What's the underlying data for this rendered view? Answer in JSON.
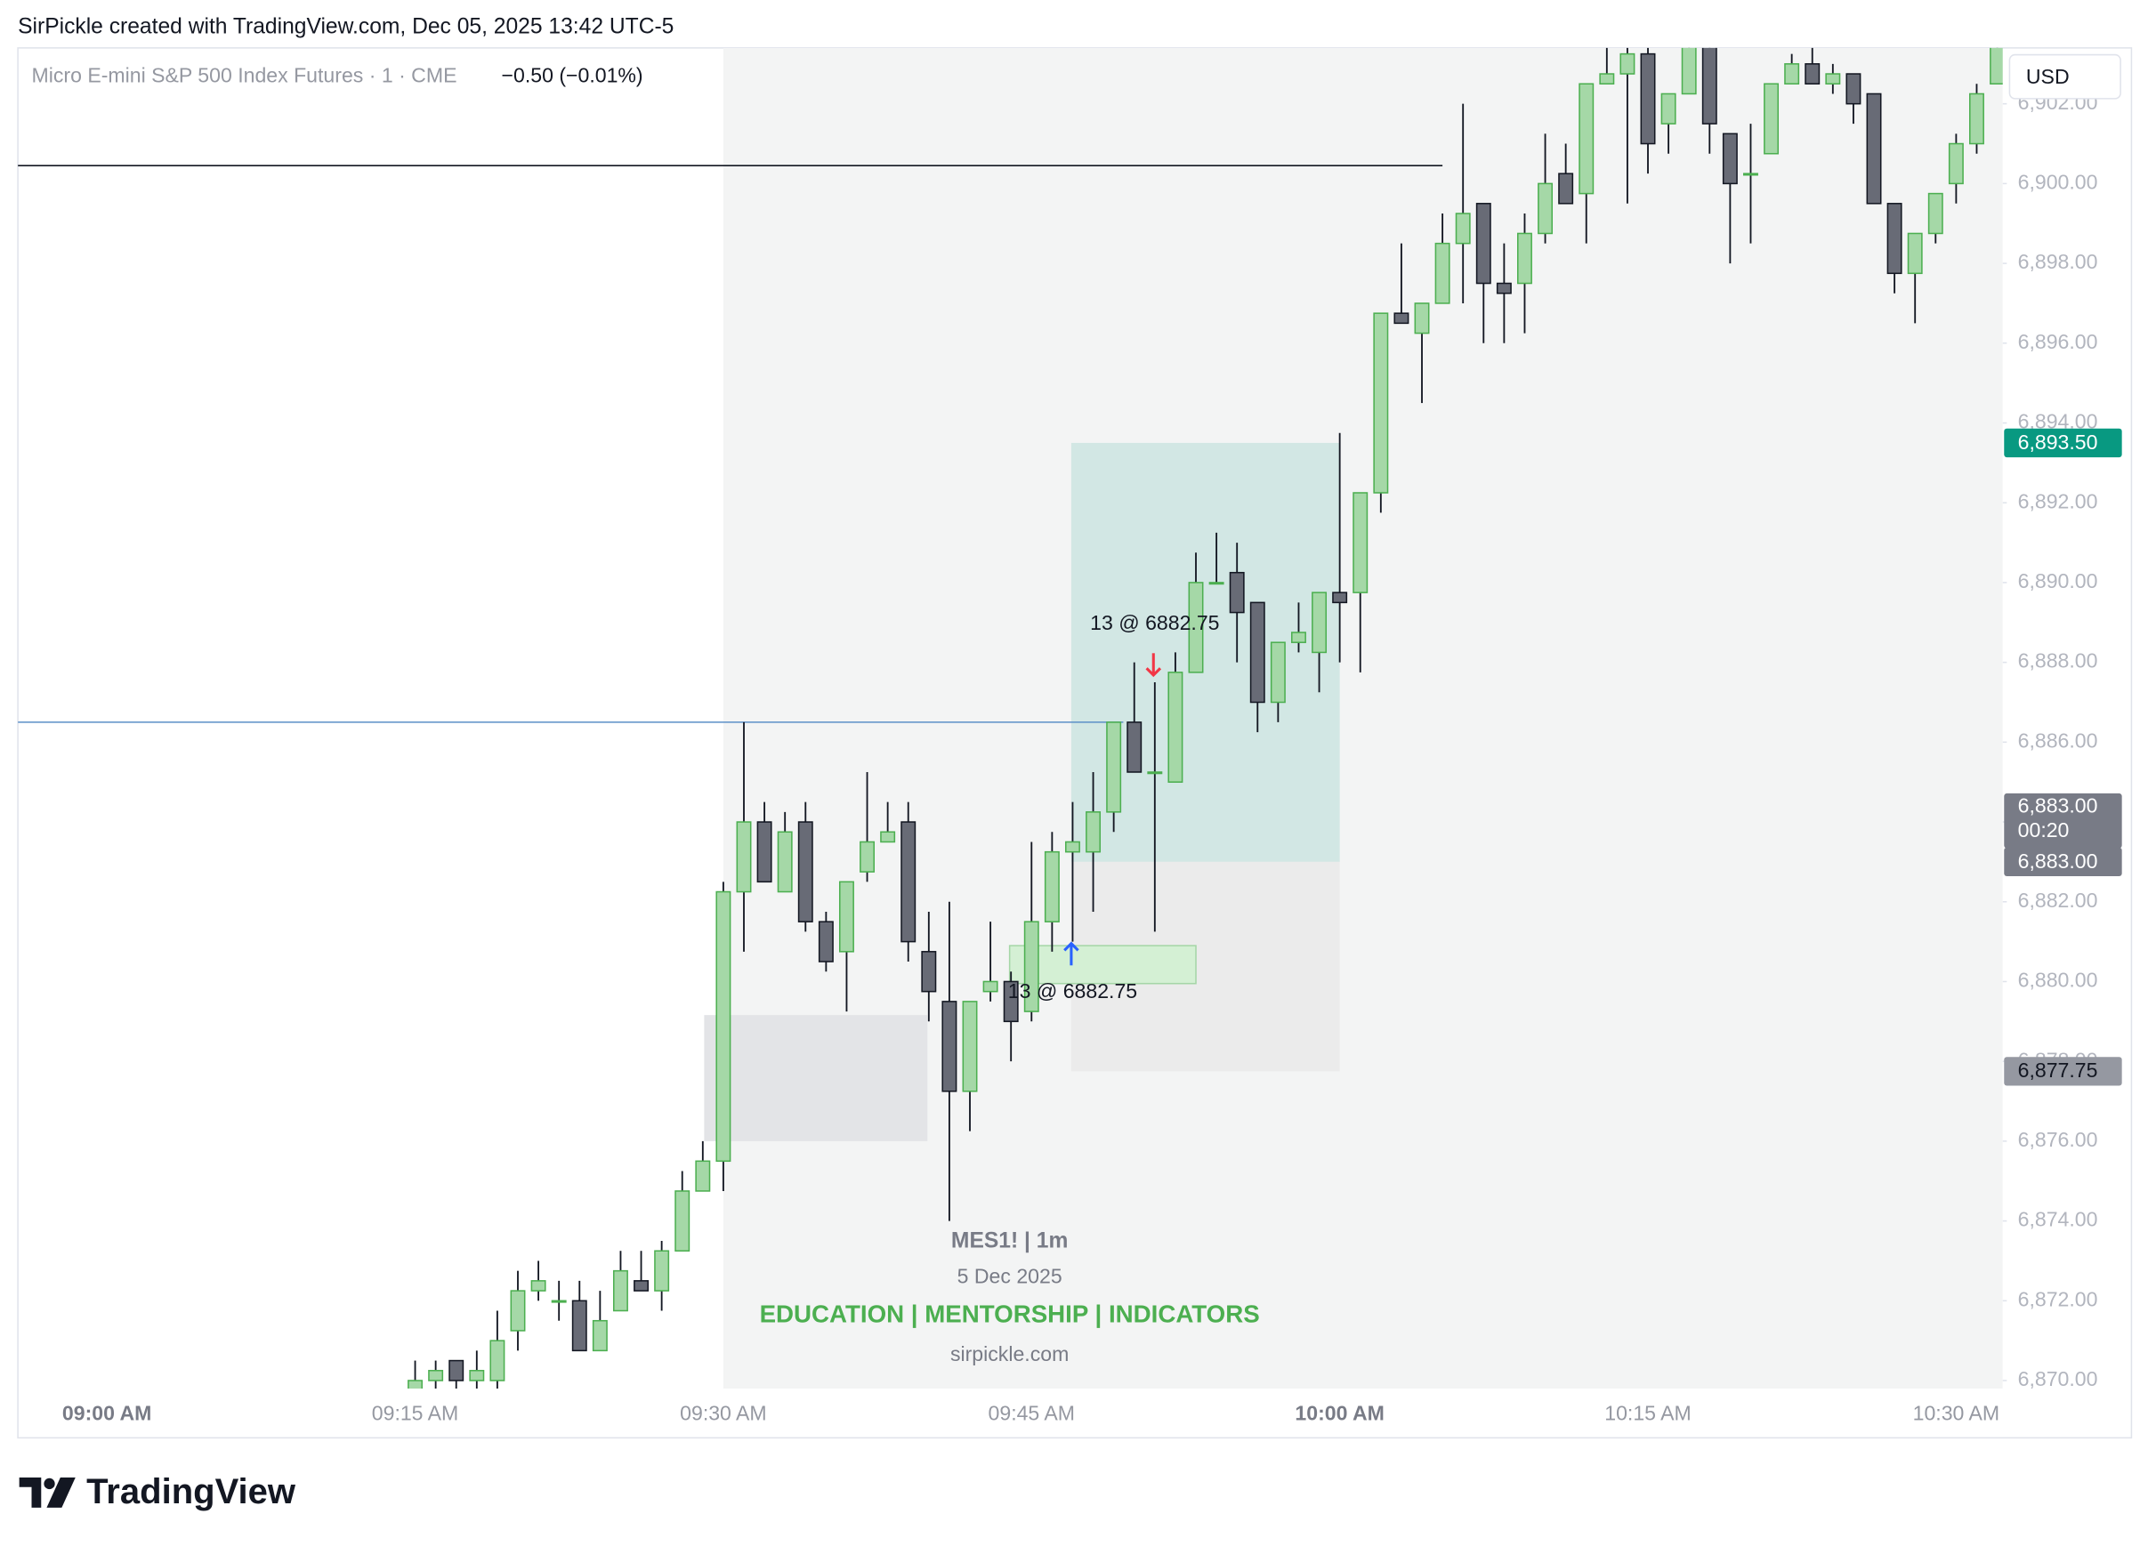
{
  "header": "SirPickle created with TradingView.com, Dec 05, 2025 13:42 UTC-5",
  "chart_data": {
    "type": "candlestick",
    "title": "Micro E-mini S&P 500 Index Futures · 1 · CME",
    "change_label": "−0.50 (−0.01%)",
    "currency": "USD",
    "categories": [
      "09:00 AM",
      null,
      null,
      null,
      null,
      null,
      null,
      null,
      null,
      null,
      null,
      null,
      null,
      null,
      null,
      "09:15 AM",
      null,
      null,
      null,
      null,
      null,
      null,
      null,
      null,
      null,
      null,
      null,
      null,
      null,
      null,
      "09:30 AM",
      null,
      null,
      null,
      null,
      null,
      null,
      null,
      null,
      null,
      null,
      null,
      null,
      null,
      null,
      "09:45 AM",
      null,
      null,
      null,
      null,
      null,
      null,
      null,
      null,
      null,
      null,
      null,
      null,
      null,
      null,
      "10:00 AM",
      null,
      null,
      null,
      null,
      null,
      null,
      null,
      null,
      null,
      null,
      null,
      null,
      null,
      null,
      "10:15 AM",
      null,
      null,
      null,
      null,
      null,
      null,
      null,
      null,
      null,
      null,
      null,
      null,
      null,
      null,
      "10:30 AM",
      null,
      null
    ],
    "open": [
      null,
      null,
      null,
      null,
      null,
      null,
      null,
      null,
      null,
      null,
      null,
      null,
      null,
      null,
      null,
      6869.75,
      6870,
      6870.5,
      6870,
      6870,
      6871.25,
      6872.25,
      6872,
      6872,
      6870.75,
      6871.75,
      6872.5,
      6872.25,
      6873.25,
      6874.75,
      6875.5,
      6882.25,
      6884,
      6882.25,
      6884,
      6881.5,
      6880.75,
      6882.75,
      6883.5,
      6884,
      6880.75,
      6879.5,
      6877.25,
      6879.75,
      6880,
      6879.25,
      6881.5,
      6883.25,
      6883.25,
      6884.25,
      6886.5,
      6885.25,
      6885,
      6887.75,
      6890,
      6890.25,
      6889.5,
      6887,
      6888.5,
      6888.25,
      6889.75,
      6889.75,
      6892.25,
      6896.75,
      6896.25,
      6897,
      6898.5,
      6899.5,
      6897.5,
      6897.5,
      6898.75,
      6900.25,
      6899.75,
      6902.5,
      6902.75,
      6903.25,
      6901.5,
      6902.25,
      6903.5,
      6901.25,
      6900.25,
      6900.75,
      6902.5,
      6903,
      6902.5,
      6902.75,
      6902.25,
      6899.5,
      6897.75,
      6898.75,
      6900,
      6901,
      6902.5
    ],
    "high": [
      null,
      null,
      null,
      null,
      null,
      null,
      null,
      null,
      null,
      null,
      null,
      null,
      null,
      null,
      null,
      6870.5,
      6870.5,
      6870.5,
      6870.75,
      6871.75,
      6872.75,
      6873,
      6872.5,
      6872.5,
      6872.25,
      6873.25,
      6873.25,
      6873.5,
      6875.25,
      6876,
      6882.5,
      6886.5,
      6884.5,
      6884.25,
      6884.5,
      6881.75,
      6882.5,
      6885.25,
      6884.5,
      6884.5,
      6881.75,
      6882,
      6879.5,
      6881.5,
      6880.25,
      6883.5,
      6883.75,
      6884.5,
      6885.25,
      6886.5,
      6888,
      6887.5,
      6888.25,
      6890.75,
      6891.25,
      6891,
      6889.5,
      6888.5,
      6889.5,
      6889.75,
      6893.75,
      6892.25,
      6896.75,
      6898.5,
      6897,
      6899.25,
      6902,
      6899.5,
      6898.5,
      6899.25,
      6901.25,
      6901,
      6902.5,
      6903.5,
      6903.5,
      6903.5,
      6902.25,
      6903.5,
      6903.5,
      6901.25,
      6901.5,
      6902.5,
      6903.25,
      6903.5,
      6903,
      6902.75,
      6902.25,
      6899.5,
      6898.75,
      6899.75,
      6901.25,
      6902.5,
      6903.5
    ],
    "low": [
      null,
      null,
      null,
      null,
      null,
      null,
      null,
      null,
      null,
      null,
      null,
      null,
      null,
      null,
      null,
      6869.5,
      6869.75,
      6869.75,
      6869.75,
      6869.75,
      6870.75,
      6872,
      6871.5,
      6870.75,
      6870.75,
      6871.75,
      6872.25,
      6871.75,
      6873.25,
      6874.75,
      6874.75,
      6880.75,
      6882.5,
      6882.25,
      6881.25,
      6880.25,
      6879.25,
      6882.5,
      6883.5,
      6880.5,
      6879,
      6874,
      6876.25,
      6879.5,
      6878,
      6879,
      6880.75,
      6881,
      6881.75,
      6883.75,
      6885.25,
      6881.25,
      6885,
      6887.75,
      6890,
      6888,
      6886.25,
      6886.5,
      6888.25,
      6887.25,
      6888,
      6887.75,
      6891.75,
      6896.5,
      6894.5,
      6897,
      6897,
      6896,
      6896,
      6896.25,
      6898.5,
      6899.5,
      6898.5,
      6902.5,
      6899.5,
      6900.25,
      6900.75,
      6902.25,
      6900.75,
      6898,
      6898.5,
      6900.75,
      6902.5,
      6902.5,
      6902.25,
      6901.5,
      6899.5,
      6897.25,
      6896.5,
      6898.5,
      6899.5,
      6900.75,
      6902.5
    ],
    "close": [
      null,
      null,
      null,
      null,
      null,
      null,
      null,
      null,
      null,
      null,
      null,
      null,
      null,
      null,
      null,
      6870,
      6870.25,
      6870,
      6870.25,
      6871,
      6872.25,
      6872.5,
      6872,
      6870.75,
      6871.5,
      6872.75,
      6872.25,
      6873.25,
      6874.75,
      6875.5,
      6882.25,
      6884,
      6882.5,
      6883.75,
      6881.5,
      6880.5,
      6882.5,
      6883.5,
      6883.75,
      6881,
      6879.75,
      6877.25,
      6879.5,
      6880,
      6879,
      6881.5,
      6883.25,
      6883.5,
      6884.25,
      6886.5,
      6885.25,
      6885.25,
      6887.75,
      6890,
      6890,
      6889.25,
      6887,
      6888.5,
      6888.75,
      6889.75,
      6889.5,
      6892.25,
      6896.75,
      6896.5,
      6897,
      6898.5,
      6899.25,
      6897.5,
      6897.25,
      6898.75,
      6900,
      6899.5,
      6902.5,
      6902.75,
      6903.25,
      6901,
      6902.25,
      6903.5,
      6901.5,
      6900,
      6900.25,
      6902.5,
      6903,
      6902.5,
      6902.75,
      6902,
      6899.5,
      6897.75,
      6898.75,
      6899.75,
      6901,
      6902.25,
      6903.5
    ],
    "up_color": "#a5d8a7",
    "up_border": "#4caf50",
    "down_color": "#686b76",
    "down_border": "#131722",
    "wick_color": "#131722",
    "ylim": [
      6869.8,
      6903.4
    ],
    "yticks": [
      {
        "value": 6870,
        "label": "6,870.00"
      },
      {
        "value": 6872,
        "label": "6,872.00"
      },
      {
        "value": 6874,
        "label": "6,874.00"
      },
      {
        "value": 6876,
        "label": "6,876.00"
      },
      {
        "value": 6878,
        "label": "6,878.00"
      },
      {
        "value": 6880,
        "label": "6,880.00"
      },
      {
        "value": 6882,
        "label": "6,882.00"
      },
      {
        "value": 6884,
        "label": "6,884.00"
      },
      {
        "value": 6886,
        "label": "6,886.00"
      },
      {
        "value": 6888,
        "label": "6,888.00"
      },
      {
        "value": 6890,
        "label": "6,890.00"
      },
      {
        "value": 6892,
        "label": "6,892.00"
      },
      {
        "value": 6894,
        "label": "6,894.00"
      },
      {
        "value": 6896,
        "label": "6,896.00"
      },
      {
        "value": 6898,
        "label": "6,898.00"
      },
      {
        "value": 6900,
        "label": "6,900.00"
      },
      {
        "value": 6902,
        "label": "6,902.00"
      }
    ],
    "grid": false,
    "hlines": [
      {
        "value": 6900.45,
        "color": "#131722"
      },
      {
        "value": 6886.5,
        "color": "#5b8fc7"
      }
    ],
    "zones": [
      {
        "top": 6879.16,
        "bottom": 6876.0,
        "color": "#e3e4e7"
      },
      {
        "top": 6893.5,
        "bottom": 6883.0,
        "color": "#d2e7e4"
      },
      {
        "top": 6883.0,
        "bottom": 6877.75,
        "color": "#ebebeb"
      },
      {
        "top": 6880.9,
        "bottom": 6879.95,
        "color": "#d4f0d4"
      }
    ],
    "executions": [
      {
        "label": "13 @ 6882.75",
        "direction": "down",
        "color": "#f23645"
      },
      {
        "label": "13 @ 6882.75",
        "direction": "up",
        "color": "#2962ff"
      }
    ],
    "price_labels": [
      {
        "value": 6893.5,
        "label": "6,893.50",
        "color": "#089981",
        "text_color": "#ffffff"
      },
      {
        "value": 6883.0,
        "label": "6,883.00",
        "color": "#787b86",
        "text_color": "#ffffff"
      },
      {
        "value": 6877.75,
        "label": "6,877.75",
        "color": "#9598a1",
        "text_color": "#131722"
      }
    ],
    "last_price": {
      "value": 6883.0,
      "label": "6,883.00",
      "countdown": "00:20",
      "color": "#787b86"
    }
  },
  "watermark": {
    "symbol": "MES1!  |  1m",
    "date": "5 Dec 2025",
    "tagline": "EDUCATION  |  MENTORSHIP  |  INDICATORS",
    "site": "sirpickle.com"
  },
  "footer": {
    "brand": "TradingView"
  }
}
